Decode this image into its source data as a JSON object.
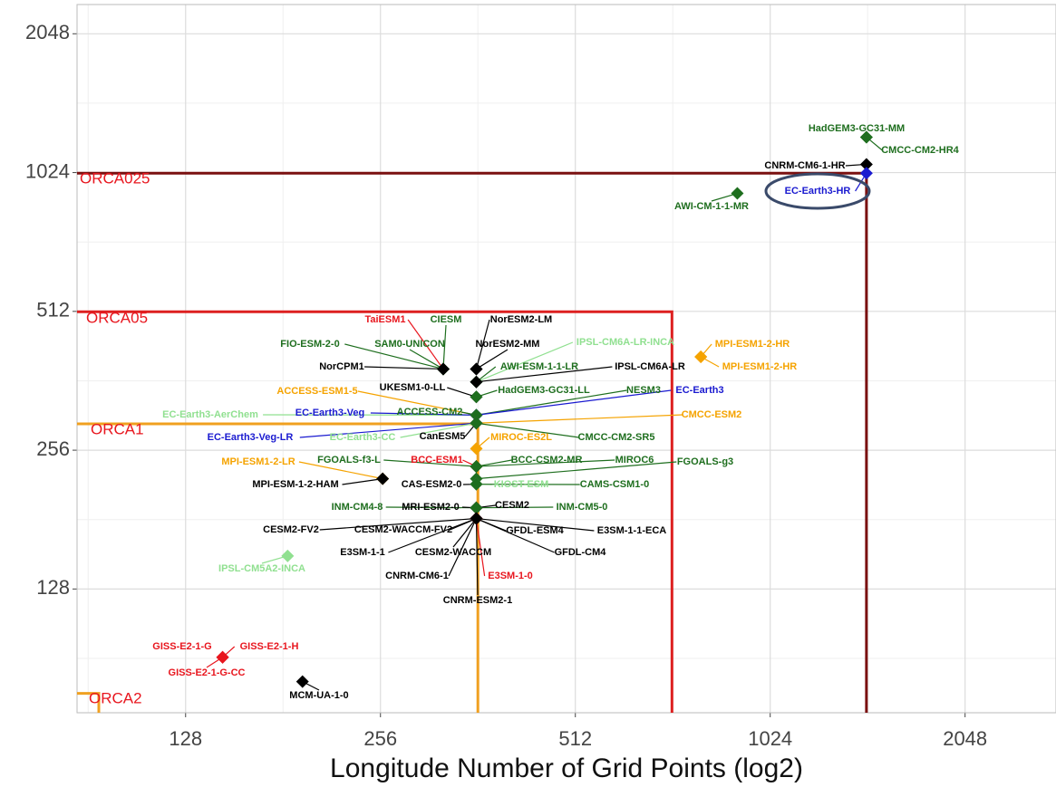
{
  "chart_data": {
    "type": "scatter",
    "xlabel": "Longitude Number of Grid Points (log2)",
    "xscale": "log2",
    "yscale": "log2",
    "grid": true,
    "xlim": [
      87,
      2830
    ],
    "ylim": [
      69,
      2370
    ],
    "xticks": [
      128,
      256,
      512,
      1024,
      2048
    ],
    "yticks": [
      128,
      256,
      512,
      1024,
      2048
    ],
    "regions": [
      {
        "name": "ORCA025",
        "x": 1442,
        "y": 1021,
        "color": "#7a1010"
      },
      {
        "name": "ORCA05",
        "x": 722,
        "y": 511,
        "color": "#dd2020"
      },
      {
        "name": "ORCA1",
        "x": 362,
        "y": 292,
        "color": "#f0a020"
      },
      {
        "name": "ORCA2",
        "x": 94,
        "y": 76,
        "color": "#f0a020"
      }
    ],
    "points": [
      {
        "name": "HadGEM3-GC31-MM",
        "x": 1442,
        "y": 1222,
        "color": "#1e6e1e"
      },
      {
        "name": "CMCC-CM2-HR4",
        "x": 1442,
        "y": 1222,
        "color": "#1e6e1e"
      },
      {
        "name": "CNRM-CM6-1-HR",
        "x": 1442,
        "y": 1067,
        "color": "#000000"
      },
      {
        "name": "EC-Earth3-HR",
        "x": 1442,
        "y": 1021,
        "color": "#1a1ad0"
      },
      {
        "name": "AWI-CM-1-1-MR",
        "x": 911,
        "y": 923,
        "color": "#1e6e1e"
      },
      {
        "name": "TaiESM1",
        "x": 320,
        "y": 384,
        "color": "#e8161e"
      },
      {
        "name": "CIESM",
        "x": 320,
        "y": 384,
        "color": "#1e6e1e"
      },
      {
        "name": "NorESM2-LM",
        "x": 360,
        "y": 384,
        "color": "#000000"
      },
      {
        "name": "FIO-ESM-2-0",
        "x": 320,
        "y": 384,
        "color": "#1e6e1e"
      },
      {
        "name": "SAM0-UNICON",
        "x": 320,
        "y": 384,
        "color": "#1e6e1e"
      },
      {
        "name": "NorESM2-MM",
        "x": 360,
        "y": 384,
        "color": "#000000"
      },
      {
        "name": "IPSL-CM6A-LR-INCA",
        "x": 360,
        "y": 360,
        "color": "#90e090"
      },
      {
        "name": "MPI-ESM1-2-HR",
        "x": 800,
        "y": 408,
        "color": "#f5a300"
      },
      {
        "name": "NorCPM1",
        "x": 320,
        "y": 384,
        "color": "#000000"
      },
      {
        "name": "AWI-ESM-1-1-LR",
        "x": 360,
        "y": 360,
        "color": "#1e6e1e"
      },
      {
        "name": "IPSL-CM6A-LR",
        "x": 360,
        "y": 360,
        "color": "#000000"
      },
      {
        "name": "MPI-ESM1-2-HR",
        "x": 800,
        "y": 408,
        "color": "#f5a300"
      },
      {
        "name": "UKESM1-0-LL",
        "x": 360,
        "y": 334,
        "color": "#000000"
      },
      {
        "name": "ACCESS-ESM1-5",
        "x": 360,
        "y": 305,
        "color": "#f5a300"
      },
      {
        "name": "HadGEM3-GC31-LL",
        "x": 360,
        "y": 334,
        "color": "#1e6e1e"
      },
      {
        "name": "NESM3",
        "x": 360,
        "y": 305,
        "color": "#1e6e1e"
      },
      {
        "name": "EC-Earth3",
        "x": 360,
        "y": 305,
        "color": "#1a1ad0"
      },
      {
        "name": "EC-Earth3-AerChem",
        "x": 360,
        "y": 305,
        "color": "#90e090"
      },
      {
        "name": "EC-Earth3-Veg",
        "x": 360,
        "y": 305,
        "color": "#1a1ad0"
      },
      {
        "name": "ACCESS-CM2",
        "x": 360,
        "y": 305,
        "color": "#1e6e1e"
      },
      {
        "name": "CMCC-ESM2",
        "x": 360,
        "y": 293,
        "color": "#f5a300"
      },
      {
        "name": "EC-Earth3-Veg-LR",
        "x": 360,
        "y": 293,
        "color": "#1a1ad0"
      },
      {
        "name": "EC-Earth3-CC",
        "x": 360,
        "y": 293,
        "color": "#90e090"
      },
      {
        "name": "CanESM5",
        "x": 360,
        "y": 293,
        "color": "#000000"
      },
      {
        "name": "MIROC-ES2L",
        "x": 360,
        "y": 258,
        "color": "#f5a300"
      },
      {
        "name": "CMCC-CM2-SR5",
        "x": 360,
        "y": 293,
        "color": "#1e6e1e"
      },
      {
        "name": "MPI-ESM1-2-LR",
        "x": 258,
        "y": 222,
        "color": "#f5a300"
      },
      {
        "name": "FGOALS-f3-L",
        "x": 360,
        "y": 236,
        "color": "#1e6e1e"
      },
      {
        "name": "BCC-ESM1",
        "x": 360,
        "y": 236,
        "color": "#e8161e"
      },
      {
        "name": "BCC-CSM2-MR",
        "x": 360,
        "y": 236,
        "color": "#1e6e1e"
      },
      {
        "name": "MIROC6",
        "x": 360,
        "y": 236,
        "color": "#1e6e1e"
      },
      {
        "name": "FGOALS-g3",
        "x": 360,
        "y": 222,
        "color": "#1e6e1e"
      },
      {
        "name": "MPI-ESM-1-2-HAM",
        "x": 258,
        "y": 222,
        "color": "#000000"
      },
      {
        "name": "CAS-ESM2-0",
        "x": 360,
        "y": 216,
        "color": "#000000"
      },
      {
        "name": "KIOST-ESM",
        "x": 360,
        "y": 216,
        "color": "#90e090"
      },
      {
        "name": "CAMS-CSM1-0",
        "x": 360,
        "y": 216,
        "color": "#1e6e1e"
      },
      {
        "name": "INM-CM4-8",
        "x": 360,
        "y": 192,
        "color": "#1e6e1e"
      },
      {
        "name": "MRI-ESM2-0",
        "x": 360,
        "y": 192,
        "color": "#000000"
      },
      {
        "name": "CESM2",
        "x": 360,
        "y": 192,
        "color": "#000000"
      },
      {
        "name": "INM-CM5-0",
        "x": 360,
        "y": 192,
        "color": "#1e6e1e"
      },
      {
        "name": "CESM2-FV2",
        "x": 360,
        "y": 182,
        "color": "#000000"
      },
      {
        "name": "CESM2-WACCM-FV2",
        "x": 360,
        "y": 182,
        "color": "#000000"
      },
      {
        "name": "GFDL-ESM4",
        "x": 360,
        "y": 182,
        "color": "#000000"
      },
      {
        "name": "E3SM-1-1-ECA",
        "x": 360,
        "y": 182,
        "color": "#000000"
      },
      {
        "name": "E3SM-1-1",
        "x": 360,
        "y": 182,
        "color": "#000000"
      },
      {
        "name": "CESM2-WACCM",
        "x": 360,
        "y": 182,
        "color": "#000000"
      },
      {
        "name": "GFDL-CM4",
        "x": 360,
        "y": 182,
        "color": "#000000"
      },
      {
        "name": "IPSL-CM5A2-INCA",
        "x": 184,
        "y": 151,
        "color": "#90e090"
      },
      {
        "name": "CNRM-CM6-1",
        "x": 360,
        "y": 182,
        "color": "#000000"
      },
      {
        "name": "E3SM-1-0",
        "x": 360,
        "y": 182,
        "color": "#e8161e"
      },
      {
        "name": "CNRM-ESM2-1",
        "x": 360,
        "y": 182,
        "color": "#000000"
      },
      {
        "name": "GISS-E2-1-G",
        "x": 146,
        "y": 91,
        "color": "#e8161e"
      },
      {
        "name": "GISS-E2-1-H",
        "x": 146,
        "y": 91,
        "color": "#e8161e"
      },
      {
        "name": "GISS-E2-1-G-CC",
        "x": 146,
        "y": 91,
        "color": "#e8161e"
      },
      {
        "name": "MCM-UA-1-0",
        "x": 194,
        "y": 80.6,
        "color": "#000000"
      }
    ]
  }
}
